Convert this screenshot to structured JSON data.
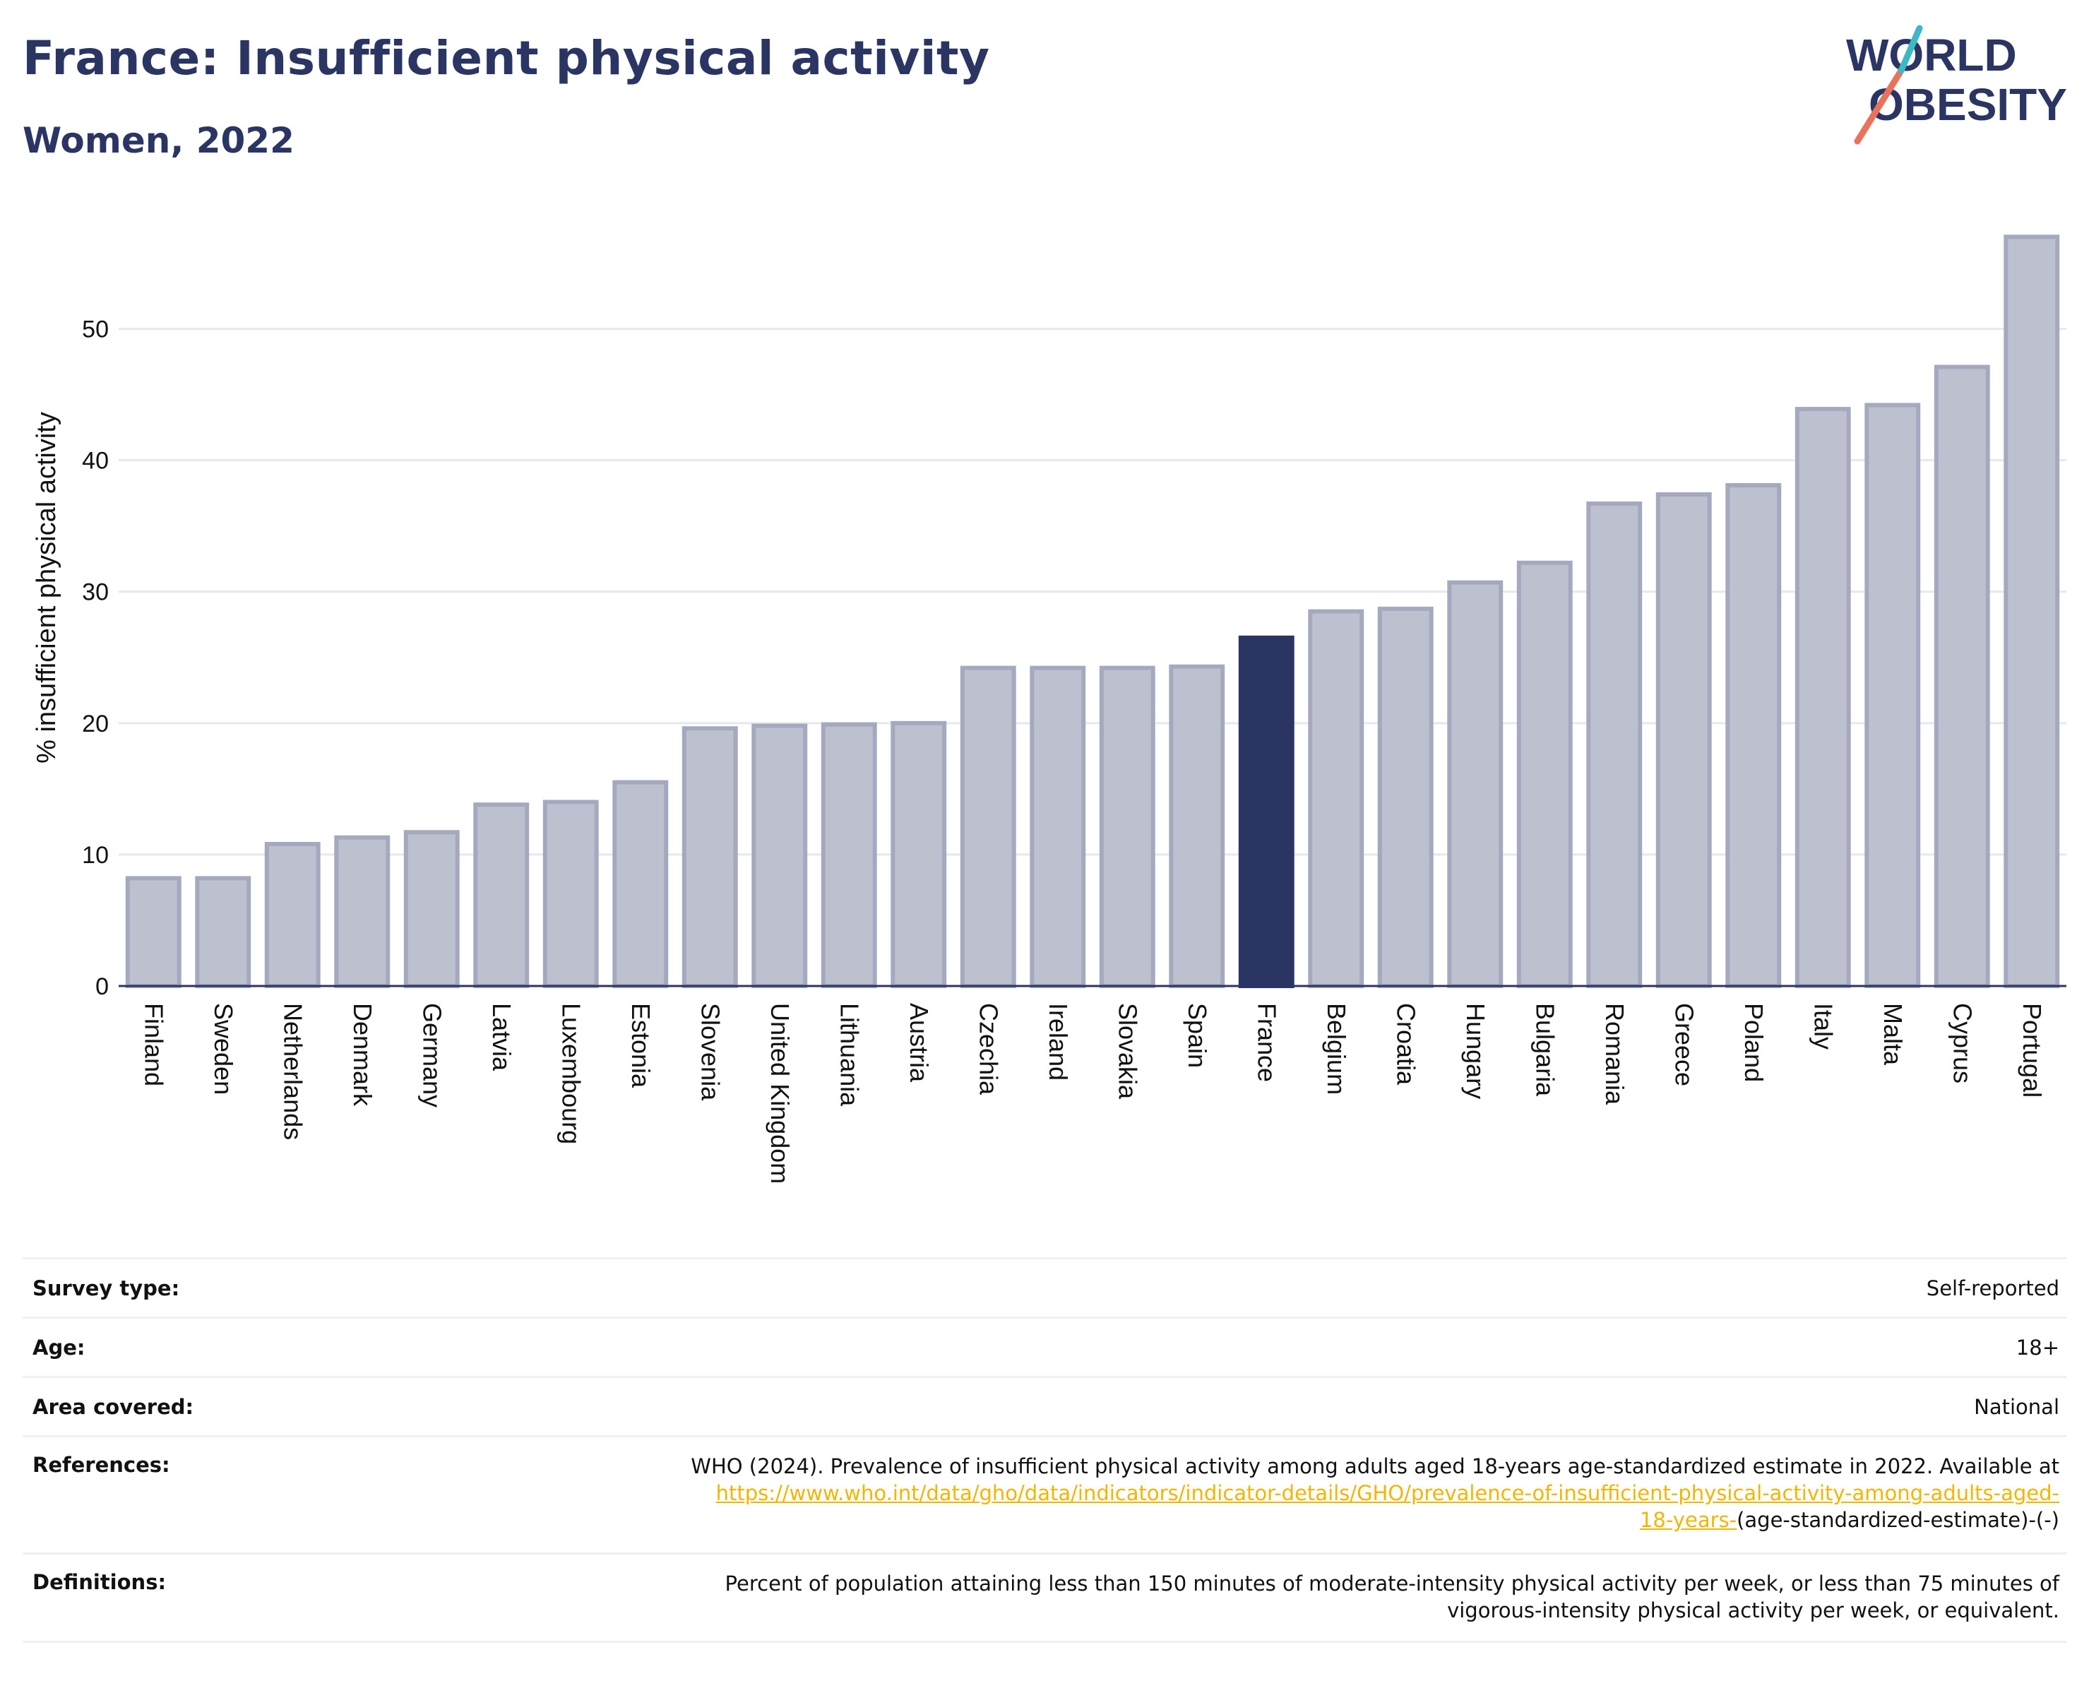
{
  "header": {
    "title": "France: Insufficient physical activity",
    "subtitle": "Women, 2022"
  },
  "logo": {
    "line1": "WORLD",
    "line2": "OBESITY",
    "colors": [
      "#2b3563",
      "#e8735a",
      "#3cb9c4"
    ]
  },
  "colors": {
    "bar": "#bdc0cf",
    "bar_stroke": "#a4a9bf",
    "highlight": "#2b3563",
    "grid": "#e6e8ef",
    "axis": "#2b3563",
    "text": "#111111",
    "link": "#f4b400"
  },
  "chart_data": {
    "type": "bar",
    "title": "France: Insufficient physical activity",
    "subtitle": "Women, 2022",
    "xlabel": "",
    "ylabel": "% insufficient physical activity",
    "ylim": [
      0,
      57.5
    ],
    "yticks": [
      0,
      10,
      20,
      30,
      40,
      50
    ],
    "grid": true,
    "highlight": "France",
    "categories": [
      "Finland",
      "Sweden",
      "Netherlands",
      "Denmark",
      "Germany",
      "Latvia",
      "Luxembourg",
      "Estonia",
      "Slovenia",
      "United Kingdom",
      "Lithuania",
      "Austria",
      "Czechia",
      "Ireland",
      "Slovakia",
      "Spain",
      "France",
      "Belgium",
      "Croatia",
      "Hungary",
      "Bulgaria",
      "Romania",
      "Greece",
      "Poland",
      "Italy",
      "Malta",
      "Cyprus",
      "Portugal"
    ],
    "values": [
      8.2,
      8.2,
      10.8,
      11.3,
      11.7,
      13.8,
      14.0,
      15.5,
      19.6,
      19.8,
      19.9,
      20.0,
      24.2,
      24.2,
      24.2,
      24.3,
      26.5,
      28.5,
      28.7,
      30.7,
      32.2,
      36.7,
      37.4,
      38.1,
      43.9,
      44.2,
      47.1,
      57.0
    ]
  },
  "details": {
    "survey_type_label": "Survey type:",
    "survey_type_value": "Self-reported",
    "age_label": "Age:",
    "age_value": "18+",
    "area_label": "Area covered:",
    "area_value": "National",
    "references_label": "References:",
    "references_text": "WHO (2024). Prevalence of insufficient physical activity among adults aged 18-years age-standardized estimate in 2022. Available at",
    "references_link_1": "https://www.who.int/data/gho/data/indicators/indicator-details/GHO/prevalence-of-insufficient-physical-activity-among-adults-aged-",
    "references_link_2": "18-years-",
    "references_tail": "(age-standardized-estimate)-(-)",
    "definitions_label": "Definitions:",
    "definitions_line_1": "Percent of population attaining less than 150 minutes of moderate-intensity physical activity per week, or less than 75 minutes of",
    "definitions_line_2": "vigorous-intensity physical activity per week, or equivalent."
  }
}
